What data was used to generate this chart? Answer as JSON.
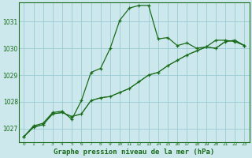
{
  "title": "Graphe pression niveau de la mer (hPa)",
  "background_color": "#cce8ec",
  "grid_color": "#99ccd4",
  "line_color": "#1a6b1a",
  "xlim": [
    -0.5,
    23.5
  ],
  "ylim": [
    1026.5,
    1031.7
  ],
  "yticks": [
    1027,
    1028,
    1029,
    1030,
    1031
  ],
  "xtick_labels": [
    "0",
    "1",
    "2",
    "3",
    "4",
    "5",
    "6",
    "7",
    "8",
    "9",
    "10",
    "11",
    "12",
    "13",
    "14",
    "15",
    "16",
    "17",
    "18",
    "19",
    "20",
    "21",
    "22",
    "23"
  ],
  "series1_x": [
    0,
    1,
    2,
    3,
    4,
    5,
    6,
    7,
    8,
    9,
    10,
    11,
    12,
    13,
    14,
    15,
    16,
    17,
    18,
    19,
    20,
    21,
    22,
    23
  ],
  "series1_y": [
    1026.7,
    1027.1,
    1027.2,
    1027.6,
    1027.65,
    1027.35,
    1028.05,
    1029.1,
    1029.25,
    1030.0,
    1031.05,
    1031.5,
    1031.6,
    1031.6,
    1030.35,
    1030.4,
    1030.1,
    1030.2,
    1030.0,
    1030.05,
    1030.3,
    1030.3,
    1030.25,
    1030.1
  ],
  "series2_x": [
    0,
    1,
    2,
    3,
    4,
    5,
    6,
    7,
    8,
    9,
    10,
    11,
    12,
    13,
    14,
    15,
    16,
    17,
    18,
    19,
    20,
    21,
    22,
    23
  ],
  "series2_y": [
    1026.7,
    1027.05,
    1027.15,
    1027.55,
    1027.6,
    1027.45,
    1027.55,
    1028.05,
    1028.15,
    1028.2,
    1028.35,
    1028.5,
    1028.75,
    1029.0,
    1029.1,
    1029.35,
    1029.55,
    1029.75,
    1029.9,
    1030.05,
    1030.0,
    1030.25,
    1030.3,
    1030.1
  ],
  "series3_x": [
    0,
    1,
    2,
    3,
    4,
    5,
    6,
    7,
    8,
    9,
    10,
    11,
    12,
    13,
    14,
    15,
    16,
    17,
    18,
    19,
    20,
    21,
    22,
    23
  ],
  "series3_y": [
    1026.7,
    1027.05,
    1027.15,
    1027.55,
    1027.6,
    1027.45,
    1027.55,
    1028.05,
    1028.15,
    1028.2,
    1028.35,
    1028.5,
    1028.75,
    1029.0,
    1029.1,
    1029.35,
    1029.55,
    1029.75,
    1029.9,
    1030.05,
    1030.0,
    1030.25,
    1030.3,
    1030.1
  ],
  "ylabel_fontsize": 5.5,
  "xlabel_fontsize": 6.5
}
